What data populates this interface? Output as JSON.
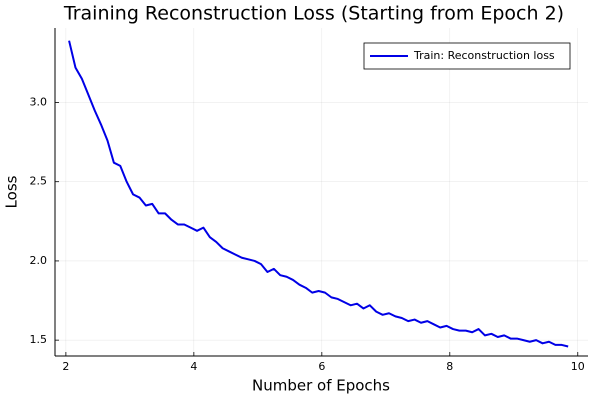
{
  "chart_data": {
    "type": "line",
    "title": "Training Reconstruction Loss (Starting from Epoch 2)",
    "xlabel": "Number of Epochs",
    "ylabel": "Loss",
    "x": [
      2.05,
      2.15,
      2.25,
      2.35,
      2.45,
      2.55,
      2.65,
      2.75,
      2.85,
      2.95,
      3.05,
      3.15,
      3.25,
      3.35,
      3.45,
      3.55,
      3.65,
      3.75,
      3.85,
      3.95,
      4.05,
      4.15,
      4.25,
      4.35,
      4.45,
      4.55,
      4.65,
      4.75,
      4.85,
      4.95,
      5.05,
      5.15,
      5.25,
      5.35,
      5.45,
      5.55,
      5.65,
      5.75,
      5.85,
      5.95,
      6.05,
      6.15,
      6.25,
      6.35,
      6.45,
      6.55,
      6.65,
      6.75,
      6.85,
      6.95,
      7.05,
      7.15,
      7.25,
      7.35,
      7.45,
      7.55,
      7.65,
      7.75,
      7.85,
      7.95,
      8.05,
      8.15,
      8.25,
      8.35,
      8.45,
      8.55,
      8.65,
      8.75,
      8.85,
      8.95,
      9.05,
      9.15,
      9.25,
      9.35,
      9.45,
      9.55,
      9.65,
      9.75,
      9.85
    ],
    "series": [
      {
        "name": "Train: Reconstruction loss",
        "color": "#0000e6",
        "values": [
          3.39,
          3.22,
          3.15,
          3.05,
          2.95,
          2.86,
          2.76,
          2.62,
          2.6,
          2.5,
          2.42,
          2.4,
          2.35,
          2.36,
          2.3,
          2.3,
          2.26,
          2.23,
          2.23,
          2.21,
          2.19,
          2.21,
          2.15,
          2.12,
          2.08,
          2.06,
          2.04,
          2.02,
          2.01,
          2.0,
          1.98,
          1.93,
          1.95,
          1.91,
          1.9,
          1.88,
          1.85,
          1.83,
          1.8,
          1.81,
          1.8,
          1.77,
          1.76,
          1.74,
          1.72,
          1.73,
          1.7,
          1.72,
          1.68,
          1.66,
          1.67,
          1.65,
          1.64,
          1.62,
          1.63,
          1.61,
          1.62,
          1.6,
          1.58,
          1.59,
          1.57,
          1.56,
          1.56,
          1.55,
          1.57,
          1.53,
          1.54,
          1.52,
          1.53,
          1.51,
          1.51,
          1.5,
          1.49,
          1.5,
          1.48,
          1.49,
          1.47,
          1.47,
          1.46
        ]
      }
    ],
    "xlim": [
      1.83,
      10.16
    ],
    "ylim": [
      1.4,
      3.47
    ],
    "xticks": [
      2,
      4,
      6,
      8,
      10
    ],
    "yticks": [
      {
        "value": 1.5,
        "label": "1.5"
      },
      {
        "value": 2.0,
        "label": "2.0"
      },
      {
        "value": 2.5,
        "label": "2.5"
      },
      {
        "value": 3.0,
        "label": "3.0"
      }
    ],
    "grid": true,
    "legend": "top-right"
  }
}
